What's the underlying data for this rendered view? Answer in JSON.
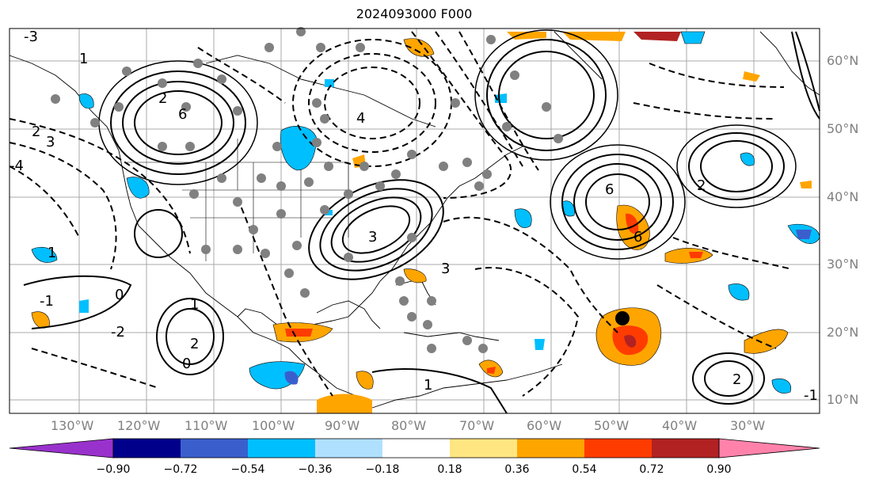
{
  "title": "2024093000 F000",
  "lon_labels": [
    "130°W",
    "120°W",
    "110°W",
    "100°W",
    "90°W",
    "80°W",
    "70°W",
    "60°W",
    "50°W",
    "40°W",
    "30°W"
  ],
  "lat_labels": [
    "60°N",
    "50°N",
    "40°N",
    "30°N",
    "20°N",
    "10°N"
  ],
  "contour_labels": {
    "nw": "-3",
    "nw2": "1",
    "w1": "2",
    "w2": "3",
    "w3": "-4",
    "c1": "6",
    "c2": "2",
    "c3": "4",
    "e1": "6",
    "e2": "6",
    "e3": "2",
    "e4": "3",
    "s1": "1",
    "s2": "-1",
    "s3": "2",
    "s4": "0",
    "s5": "-2",
    "s6": "1",
    "se1": "2",
    "se2": "-1",
    "se3": "1",
    "se4": "3",
    "se5": "0"
  },
  "colorbar": {
    "ticks": [
      "−0.90",
      "−0.72",
      "−0.54",
      "−0.36",
      "−0.18",
      "0.18",
      "0.36",
      "0.54",
      "0.72",
      "0.90"
    ],
    "colors": [
      "#9932cc",
      "#00008b",
      "#3a5fcd",
      "#00bfff",
      "#b0e0ff",
      "#ffffff",
      "#ffe680",
      "#ffa500",
      "#ff3c00",
      "#b22222",
      "#ff82ab"
    ]
  },
  "colors": {
    "land": "#ffffff",
    "grid": "#a9a9a9",
    "contour": "#000000",
    "station": "#808080",
    "warm": "#ffa500",
    "hot": "#ff3c00",
    "cold": "#00bfff"
  }
}
